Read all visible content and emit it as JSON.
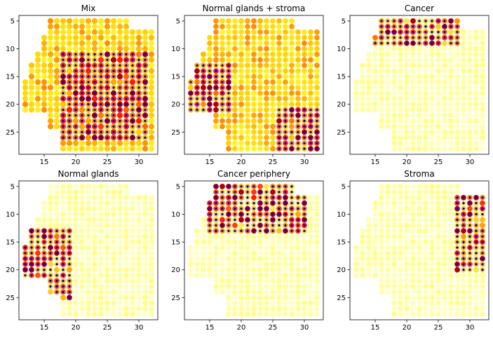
{
  "figure": {
    "panels": [
      {
        "title": "Mix"
      },
      {
        "title": "Normal glands + stroma"
      },
      {
        "title": "Cancer"
      },
      {
        "title": "Normal glands"
      },
      {
        "title": "Cancer periphery"
      },
      {
        "title": "Stroma"
      }
    ]
  },
  "chart_data": [
    {
      "type": "scatter",
      "title": "Mix",
      "xlim": [
        11,
        33
      ],
      "ylim": [
        29,
        4
      ],
      "xticks": [
        15,
        20,
        25,
        30
      ],
      "yticks": [
        5,
        10,
        15,
        20,
        25
      ],
      "y_axis_inverted": true,
      "grid": false,
      "colormap": "autumn-reversed (pale yellow to red)",
      "highlight_marker_color": "#0000cc",
      "cluster": {
        "x_range": [
          18,
          31
        ],
        "y_range": [
          11,
          26
        ],
        "intensity": "dark-red/purple core"
      }
    },
    {
      "type": "scatter",
      "title": "Normal glands + stroma",
      "xlim": [
        11,
        33
      ],
      "ylim": [
        29,
        4
      ],
      "xticks": [
        15,
        20,
        25,
        30
      ],
      "yticks": [
        5,
        10,
        15,
        20,
        25
      ],
      "y_axis_inverted": true,
      "grid": false,
      "colormap": "autumn-reversed (pale yellow to red)",
      "highlight_marker_color": "#0000cc",
      "cluster": {
        "x_range": [
          12,
          18
        ],
        "y_range": [
          13,
          21
        ],
        "second_cluster": {
          "x_range": [
            26,
            32
          ],
          "y_range": [
            21,
            28
          ]
        }
      }
    },
    {
      "type": "scatter",
      "title": "Cancer",
      "xlim": [
        11,
        33
      ],
      "ylim": [
        29,
        4
      ],
      "xticks": [
        15,
        20,
        25,
        30
      ],
      "yticks": [
        5,
        10,
        15,
        20,
        25
      ],
      "y_axis_inverted": true,
      "grid": false,
      "colormap": "autumn-reversed (pale yellow to red)",
      "highlight_marker_color": "#0000cc",
      "cluster": {
        "x_range": [
          15,
          28
        ],
        "y_range": [
          5,
          9
        ]
      }
    },
    {
      "type": "scatter",
      "title": "Normal glands",
      "xlim": [
        11,
        33
      ],
      "ylim": [
        29,
        4
      ],
      "xticks": [
        15,
        20,
        25,
        30
      ],
      "yticks": [
        5,
        10,
        15,
        20,
        25
      ],
      "y_axis_inverted": true,
      "grid": false,
      "colormap": "autumn-reversed (pale yellow to red)",
      "highlight_marker_color": "#0000cc",
      "cluster": {
        "x_range": [
          12,
          19
        ],
        "y_range": [
          13,
          25
        ]
      }
    },
    {
      "type": "scatter",
      "title": "Cancer periphery",
      "xlim": [
        11,
        33
      ],
      "ylim": [
        29,
        4
      ],
      "xticks": [
        15,
        20,
        25,
        30
      ],
      "yticks": [
        5,
        10,
        15,
        20,
        25
      ],
      "y_axis_inverted": true,
      "grid": false,
      "colormap": "autumn-reversed (pale yellow to red)",
      "highlight_marker_color": "#0000cc",
      "cluster": {
        "x_range": [
          15,
          30
        ],
        "y_range": [
          5,
          13
        ]
      }
    },
    {
      "type": "scatter",
      "title": "Stroma",
      "xlim": [
        11,
        33
      ],
      "ylim": [
        29,
        4
      ],
      "xticks": [
        15,
        20,
        25,
        30
      ],
      "yticks": [
        5,
        10,
        15,
        20,
        25
      ],
      "y_axis_inverted": true,
      "grid": false,
      "colormap": "autumn-reversed (pale yellow to red)",
      "highlight_marker_color": "#0000cc",
      "cluster": {
        "x_range": [
          28,
          32
        ],
        "y_range": [
          7,
          20
        ]
      }
    }
  ]
}
